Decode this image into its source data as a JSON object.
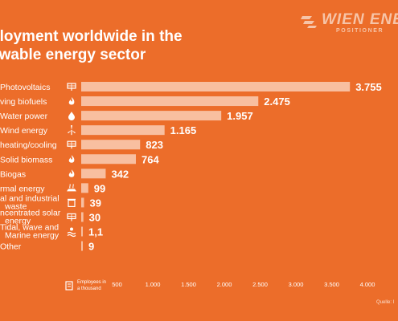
{
  "title": "ployment worldwide in the\newable energy sector",
  "logo": {
    "word": "WIEN ENER",
    "sub": "POSITIONER",
    "icon": "wien-energie-logo-icon"
  },
  "source": "Quelle: I",
  "colors": {
    "background": "#ec6d2a",
    "bar": "#f8bfa0",
    "text": "#ffffff"
  },
  "chart_data": {
    "type": "bar",
    "orientation": "horizontal",
    "categories": [
      "Photovoltaics",
      "ving biofuels",
      "Water power",
      "Wind energy",
      "heating/cooling",
      "Solid biomass",
      "Biogas",
      "rmal energy",
      "al and industrial\nwaste",
      "ncentrated solar\nenergy",
      "Tidal, wave and\nMarine energy",
      "Other"
    ],
    "icons": [
      "solar-panel-icon",
      "flame-icon",
      "water-drop-icon",
      "wind-turbine-icon",
      "solar-collector-icon",
      "flame-icon",
      "flame-icon",
      "geothermal-icon",
      "waste-bin-icon",
      "solar-panel-icon",
      "wave-icon",
      ""
    ],
    "values": [
      3755,
      2475,
      1957,
      1165,
      823,
      764,
      342,
      99,
      39,
      30,
      1.1,
      9
    ],
    "value_labels": [
      "3.755",
      "2.475",
      "1.957",
      "1.165",
      "823",
      "764",
      "342",
      "99",
      "39",
      "30",
      "1,1",
      "9"
    ],
    "xlim": [
      0,
      4000
    ],
    "xticks": [
      500,
      1000,
      1500,
      2000,
      2500,
      3000,
      3500,
      4000
    ],
    "xtick_labels": [
      "500",
      "1.000",
      "1.500",
      "2.000",
      "2.500",
      "3.000",
      "3.500",
      "4.000"
    ],
    "xlabel": "Employees in\na thousand",
    "xlabel_icon": "building-icon",
    "grid": false,
    "legend": "none"
  }
}
